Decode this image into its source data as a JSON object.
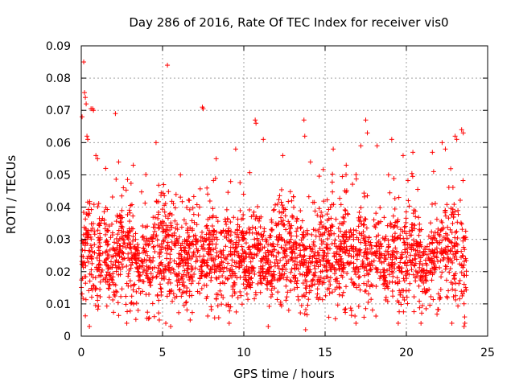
{
  "chart_data": {
    "type": "scatter",
    "title": "Day 286 of 2016, Rate Of TEC Index for receiver vis0",
    "xlabel": "GPS time / hours",
    "ylabel": "ROTI / TECUs",
    "xlim": [
      0,
      25
    ],
    "ylim": [
      0,
      0.09
    ],
    "xticks": [
      0,
      5,
      10,
      15,
      20,
      25
    ],
    "yticks": [
      0,
      0.01,
      0.02,
      0.03,
      0.04,
      0.05,
      0.06,
      0.07,
      0.08,
      0.09
    ],
    "xtick_labels": [
      "0",
      "5",
      "10",
      "15",
      "20",
      "25"
    ],
    "ytick_labels": [
      "0",
      "0.01",
      "0.02",
      "0.03",
      "0.04",
      "0.05",
      "0.06",
      "0.07",
      "0.08",
      "0.09"
    ],
    "grid": true,
    "marker": "plus",
    "series": [
      {
        "name": "ROTI",
        "color": "#ff0000",
        "x_range": [
          0.0,
          23.7
        ],
        "typical_range": [
          0.005,
          0.05
        ],
        "x": [
          0.05,
          0.15,
          0.2,
          0.25,
          0.3,
          0.35,
          0.4,
          0.6,
          0.7,
          0.75,
          0.9,
          1.0,
          2.1,
          2.3,
          4.6,
          5.3,
          7.45,
          7.5,
          9.5,
          10.7,
          10.75,
          11.2,
          13.7,
          13.75,
          15.5,
          17.2,
          17.5,
          17.6,
          18.2,
          19.1,
          19.8,
          20.4,
          22.2,
          22.4,
          23.0,
          23.1,
          23.4,
          23.5,
          1.5,
          3.2,
          6.1,
          8.3,
          12.4,
          14.1,
          16.3,
          18.9,
          21.6,
          0.5,
          2.8,
          5.2,
          5.5,
          6.7,
          9.1,
          13.8,
          16.9,
          19.5,
          22.8,
          23.55,
          23.6,
          4.8,
          11.5,
          20.9
        ],
        "y": [
          0.068,
          0.085,
          0.0755,
          0.074,
          0.072,
          0.062,
          0.061,
          0.0705,
          0.0705,
          0.07,
          0.056,
          0.055,
          0.069,
          0.054,
          0.06,
          0.084,
          0.071,
          0.0705,
          0.058,
          0.067,
          0.066,
          0.061,
          0.067,
          0.062,
          0.058,
          0.059,
          0.067,
          0.063,
          0.059,
          0.061,
          0.056,
          0.057,
          0.06,
          0.058,
          0.062,
          0.061,
          0.064,
          0.063,
          0.052,
          0.053,
          0.05,
          0.055,
          0.056,
          0.054,
          0.053,
          0.05,
          0.057,
          0.003,
          0.004,
          0.004,
          0.003,
          0.005,
          0.004,
          0.002,
          0.004,
          0.004,
          0.004,
          0.003,
          0.004,
          0.005,
          0.003,
          0.004
        ]
      }
    ]
  }
}
